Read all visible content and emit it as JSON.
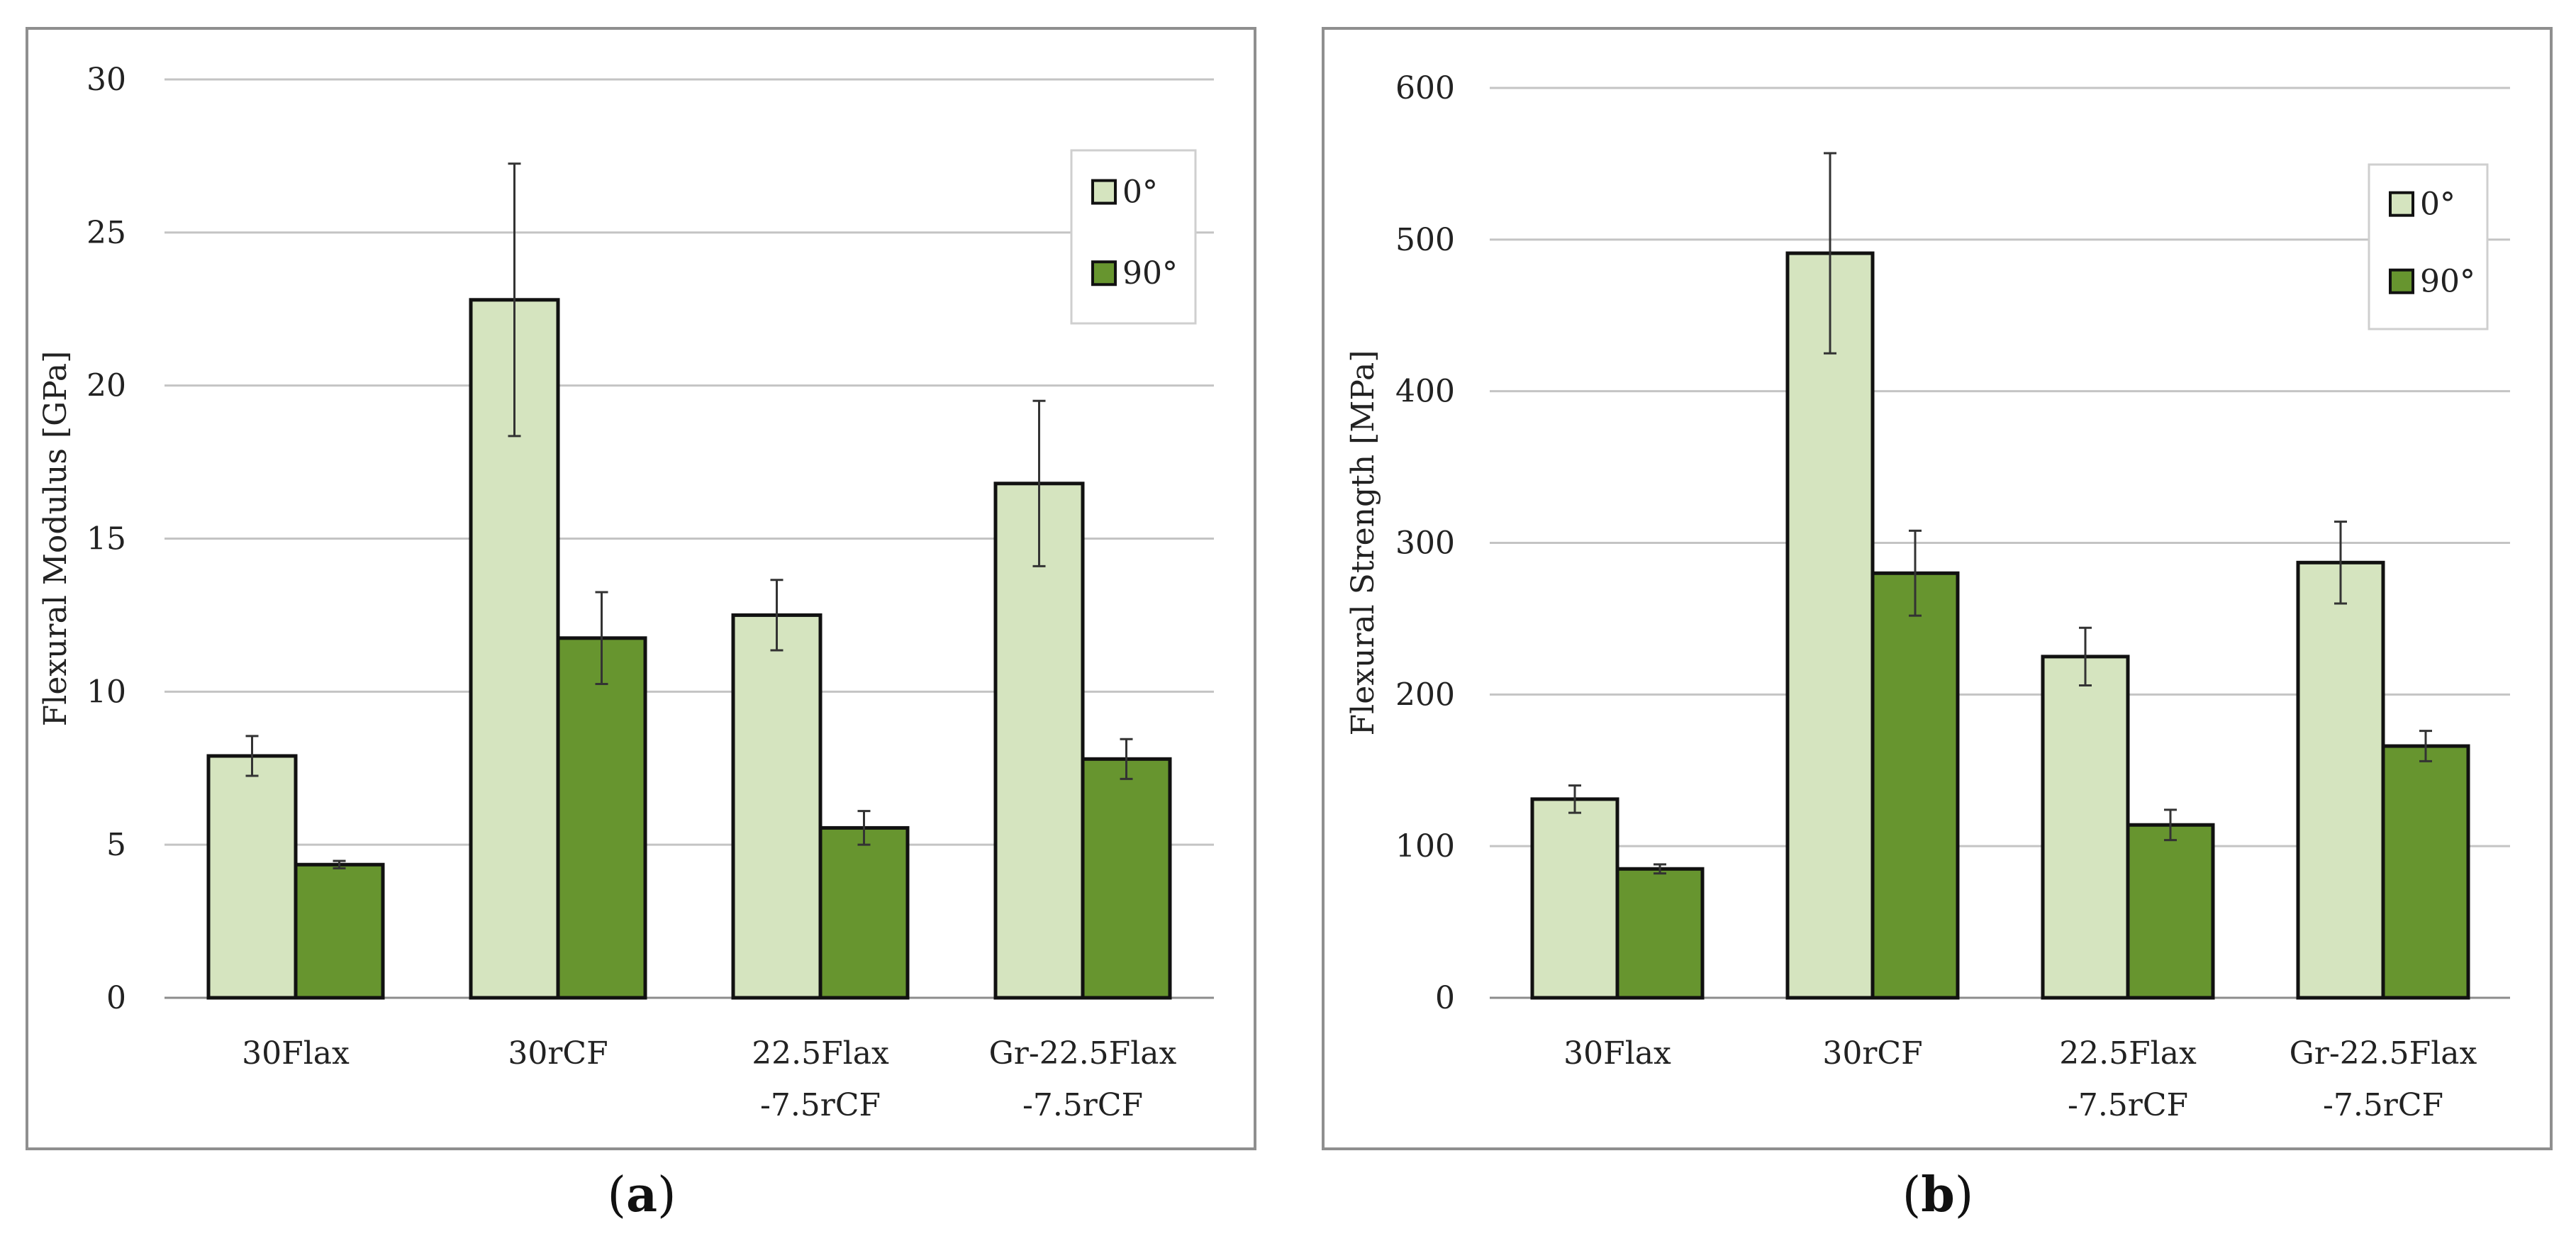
{
  "colors": {
    "series_0": "#d5e4bf",
    "series_90": "#67952f"
  },
  "chart_data": [
    {
      "id": "a",
      "type": "bar",
      "panel_label": "(a)",
      "ylabel": "Flexural Modulus [GPa]",
      "ylim": [
        0,
        30
      ],
      "yticks": [
        0,
        5,
        10,
        15,
        20,
        25,
        30
      ],
      "grid": true,
      "legend": "top-right",
      "categories": [
        [
          "30Flax"
        ],
        [
          "30rCF"
        ],
        [
          "22.5Flax",
          "-7.5rCF"
        ],
        [
          "Gr-22.5Flax",
          "-7.5rCF"
        ]
      ],
      "series": [
        {
          "name": "0°",
          "values": [
            7.9,
            22.8,
            12.5,
            16.8
          ],
          "err": [
            0.65,
            4.45,
            1.15,
            2.7
          ]
        },
        {
          "name": "90°",
          "values": [
            4.35,
            11.75,
            5.55,
            7.8
          ],
          "err": [
            0.12,
            1.5,
            0.55,
            0.65
          ]
        }
      ]
    },
    {
      "id": "b",
      "type": "bar",
      "panel_label": "(b)",
      "ylabel": "Flexural Strength [MPa]",
      "ylim": [
        0,
        600
      ],
      "yticks": [
        0,
        100,
        200,
        300,
        400,
        500,
        600
      ],
      "grid": true,
      "legend": "top-right",
      "categories": [
        [
          "30Flax"
        ],
        [
          "30rCF"
        ],
        [
          "22.5Flax",
          "-7.5rCF"
        ],
        [
          "Gr-22.5Flax",
          "-7.5rCF"
        ]
      ],
      "series": [
        {
          "name": "0°",
          "values": [
            131,
            491,
            225,
            287
          ],
          "err": [
            9,
            66,
            19,
            27
          ]
        },
        {
          "name": "90°",
          "values": [
            85,
            280,
            114,
            166
          ],
          "err": [
            3,
            28,
            10,
            10
          ]
        }
      ]
    }
  ]
}
